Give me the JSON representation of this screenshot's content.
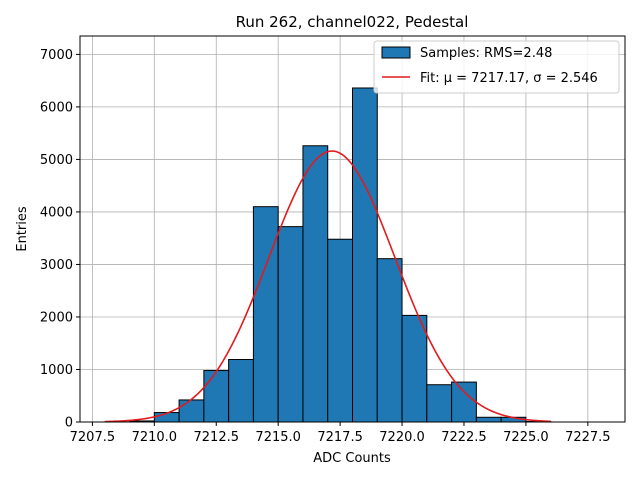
{
  "chart_data": {
    "type": "bar",
    "title": "Run 262, channel022, Pedestal",
    "xlabel": "ADC Counts",
    "ylabel": "Entries",
    "xlim": [
      7207.0,
      7229.0
    ],
    "ylim": [
      0,
      7350
    ],
    "x_ticks": [
      "7207.5",
      "7210.0",
      "7212.5",
      "7215.0",
      "7217.5",
      "7220.0",
      "7222.5",
      "7225.0",
      "7227.5"
    ],
    "y_ticks": [
      "0",
      "1000",
      "2000",
      "3000",
      "4000",
      "5000",
      "6000",
      "7000"
    ],
    "grid": true,
    "legend_position": "upper right",
    "bin_edges": [
      7209,
      7210,
      7211,
      7212,
      7213,
      7214,
      7215,
      7216,
      7217,
      7218,
      7219,
      7220,
      7221,
      7222,
      7223,
      7224,
      7225,
      7226
    ],
    "series": [
      {
        "name": "Samples: RMS=2.48",
        "kind": "histogram",
        "color": "#1f77b4",
        "edge_color": "#000000",
        "values": [
          20,
          180,
          420,
          980,
          1190,
          4100,
          3720,
          5260,
          3480,
          6360,
          3110,
          2030,
          710,
          760,
          90,
          90,
          10
        ]
      },
      {
        "name": "Fit: μ = 7217.17, σ = 2.546",
        "kind": "gaussian-fit",
        "color": "#e41a1c",
        "mu": 7217.17,
        "sigma": 2.546,
        "amplitude": 5160,
        "x_range": [
          7208.0,
          7226.0
        ]
      }
    ]
  }
}
